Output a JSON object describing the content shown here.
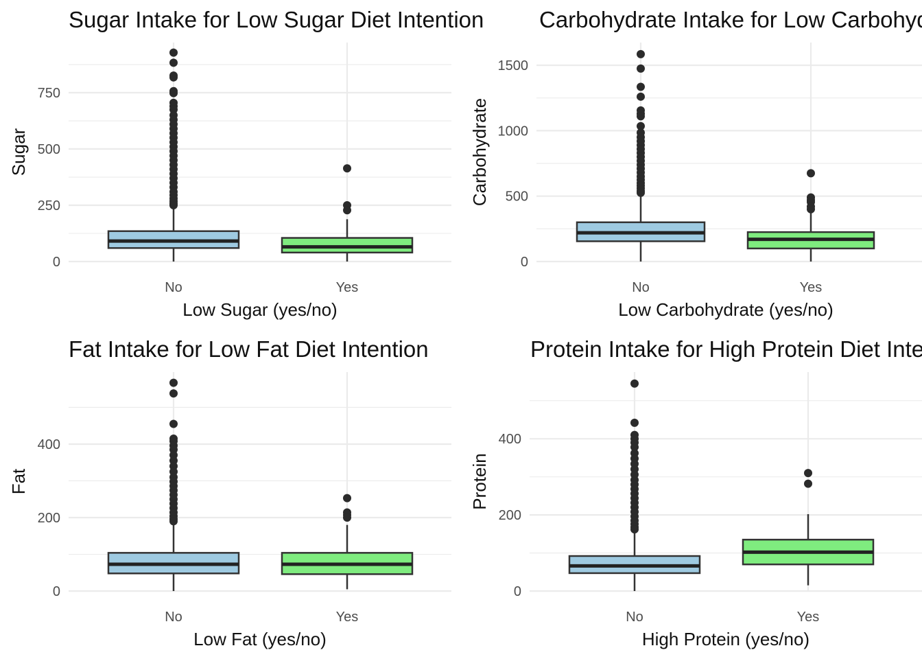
{
  "chart_data": [
    {
      "type": "boxplot",
      "title": "Sugar Intake for Low Sugar Diet Intention",
      "xlabel": "Low Sugar (yes/no)",
      "ylabel": "Sugar",
      "ylim": [
        0,
        930
      ],
      "yticks": [
        0,
        250,
        500,
        750
      ],
      "yminor": [
        125,
        375,
        625,
        875
      ],
      "categories": [
        "No",
        "Yes"
      ],
      "colors": [
        "#9ecae1",
        "#7fec7f"
      ],
      "boxes": [
        {
          "category": "No",
          "whisker_low": 0,
          "q1": 60,
          "median": 91,
          "q3": 135,
          "whisker_high": 245,
          "outliers": [
            928,
            883,
            826,
            818,
            757,
            748,
            705,
            690,
            675,
            650,
            630,
            610,
            590,
            570,
            550,
            530,
            510,
            490,
            470,
            450,
            430,
            410,
            390,
            370,
            350,
            330,
            310,
            295,
            280,
            268,
            258,
            250
          ]
        },
        {
          "category": "Yes",
          "whisker_low": 0,
          "q1": 40,
          "median": 65,
          "q3": 105,
          "whisker_high": 188,
          "outliers": [
            414,
            250,
            228
          ]
        }
      ]
    },
    {
      "type": "boxplot",
      "title": "Carbohydrate Intake for Low Carbohydrate Diet Intention",
      "xlabel": "Low Carbohydrate (yes/no)",
      "ylabel": "Carbohydrate",
      "ylim": [
        0,
        1600
      ],
      "yticks": [
        0,
        500,
        1000,
        1500
      ],
      "yminor": [
        250,
        750,
        1250
      ],
      "categories": [
        "No",
        "Yes"
      ],
      "colors": [
        "#9ecae1",
        "#7fec7f"
      ],
      "boxes": [
        {
          "category": "No",
          "whisker_low": 0,
          "q1": 155,
          "median": 220,
          "q3": 300,
          "whisker_high": 510,
          "outliers": [
            1585,
            1475,
            1335,
            1260,
            1155,
            1130,
            1110,
            1035,
            985,
            950,
            920,
            890,
            860,
            830,
            800,
            770,
            740,
            710,
            680,
            650,
            625,
            600,
            580,
            560,
            540,
            525
          ]
        },
        {
          "category": "Yes",
          "whisker_low": 0,
          "q1": 100,
          "median": 170,
          "q3": 225,
          "whisker_high": 390,
          "outliers": [
            675,
            490,
            470,
            455,
            420,
            400
          ]
        }
      ]
    },
    {
      "type": "boxplot",
      "title": "Fat Intake for Low Fat Diet Intention",
      "xlabel": "Low Fat (yes/no)",
      "ylabel": "Fat",
      "ylim": [
        0,
        570
      ],
      "yticks": [
        0,
        200,
        400
      ],
      "yminor": [
        100,
        300,
        500
      ],
      "categories": [
        "No",
        "Yes"
      ],
      "colors": [
        "#9ecae1",
        "#7fec7f"
      ],
      "boxes": [
        {
          "category": "No",
          "whisker_low": 0,
          "q1": 48,
          "median": 73,
          "q3": 104,
          "whisker_high": 187,
          "outliers": [
            567,
            538,
            455,
            415,
            408,
            396,
            385,
            370,
            355,
            340,
            325,
            310,
            298,
            286,
            274,
            262,
            250,
            238,
            226,
            214,
            204,
            196,
            190
          ]
        },
        {
          "category": "Yes",
          "whisker_low": 5,
          "q1": 46,
          "median": 73,
          "q3": 104,
          "whisker_high": 180,
          "outliers": [
            253,
            214,
            207,
            200
          ]
        }
      ]
    },
    {
      "type": "boxplot",
      "title": "Protein Intake for High Protein Diet Intention",
      "xlabel": "High Protein (yes/no)",
      "ylabel": "Protein",
      "ylim": [
        0,
        550
      ],
      "yticks": [
        0,
        200,
        400
      ],
      "yminor": [
        100,
        300,
        500
      ],
      "categories": [
        "No",
        "Yes"
      ],
      "colors": [
        "#9ecae1",
        "#7fec7f"
      ],
      "boxes": [
        {
          "category": "No",
          "whisker_low": 0,
          "q1": 47,
          "median": 66,
          "q3": 92,
          "whisker_high": 160,
          "outliers": [
            545,
            442,
            410,
            400,
            390,
            378,
            362,
            348,
            334,
            320,
            306,
            292,
            280,
            268,
            256,
            244,
            232,
            220,
            208,
            196,
            185,
            176,
            168,
            162
          ]
        },
        {
          "category": "Yes",
          "whisker_low": 15,
          "q1": 70,
          "median": 102,
          "q3": 135,
          "whisker_high": 202,
          "outliers": [
            310,
            282
          ]
        }
      ]
    }
  ]
}
